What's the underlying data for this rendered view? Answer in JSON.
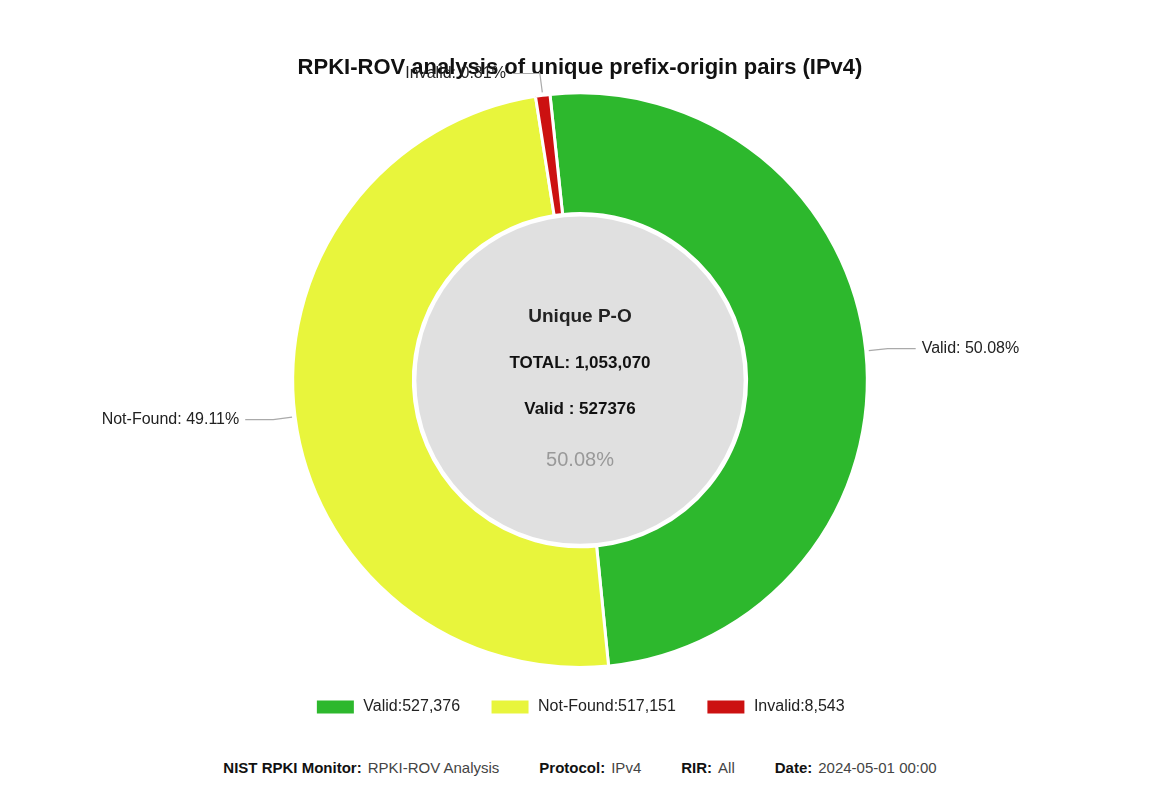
{
  "chart_data": {
    "type": "doughnut",
    "title": "RPKI-ROV analysis of unique prefix-origin pairs (IPv4)",
    "categories": [
      "Valid:527,376",
      "Not-Found:517,151",
      "Invalid:8,543"
    ],
    "values": [
      50.08,
      49.11,
      0.81
    ],
    "value_labels": [
      "Valid: 50.08%",
      "Not-Found: 49.11%",
      "Invalid: 0.81%"
    ],
    "data_labels": true,
    "colors": [
      "#2db82d",
      "#e8f53c",
      "#cc1111"
    ],
    "legend": "bottom",
    "annotations": [
      "Unique P-O",
      "TOTAL: 1,053,070",
      "Valid : 527376",
      "50.08%"
    ],
    "footer": [
      [
        "NIST RPKI Monitor:",
        "RPKI-ROV Analysis"
      ],
      [
        "Protocol:",
        "IPv4"
      ],
      [
        "RIR:",
        "All"
      ],
      [
        "Date:",
        "2024-05-01 00:00"
      ]
    ]
  }
}
